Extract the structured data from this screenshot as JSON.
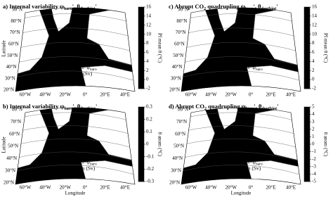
{
  "panels": [
    {
      "label": "a)",
      "title": [
        "Internal variability ψ",
        "baro",
        "', θ",
        "depthint",
        "'"
      ],
      "colorbar_label": "PI mean θ (°C)",
      "clim": [
        -2,
        16
      ],
      "colormap": "jet",
      "colorbar_ticks": [
        16,
        14,
        12,
        10,
        8,
        6,
        4,
        2,
        0,
        -2
      ],
      "lat_labels": [
        "90°N",
        "80°N",
        "70°N",
        "60°N",
        "50°N",
        "40°N",
        "30°N",
        "20°N"
      ],
      "lon_labels": [
        "60°W",
        "40°W",
        "20°W",
        "0°",
        "20°E",
        "40°E"
      ],
      "y_label": "Latitude",
      "annotation": [
        [
          "contours=ψ",
          "baro"
        ],
        [
          "anom (Sv)"
        ]
      ]
    },
    {
      "label": "b)",
      "title": [
        "Internal variability ψ",
        "baro",
        "', θ",
        "depthint",
        "'"
      ],
      "colorbar_label": "θ anom (°C)",
      "clim": [
        -0.3,
        0.3
      ],
      "colormap": "diverging",
      "colorbar_ticks": [
        0.3,
        0.2,
        0.1,
        0,
        -0.1,
        -0.2,
        -0.3
      ],
      "lat_labels": [
        "80°N",
        "70°N",
        "60°N",
        "50°N",
        "40°N",
        "30°N",
        "20°N"
      ],
      "lon_labels": [
        "60°W",
        "40°W",
        "20°W",
        "0°",
        "20°E",
        "40°E"
      ],
      "y_label": "Latitude",
      "x_label": "Longitude",
      "annotation": [
        [
          "contours=ψ",
          "baro"
        ],
        [
          "PI mean (Sv)"
        ]
      ]
    },
    {
      "label": "c)",
      "title": [
        "Abrupt CO",
        "2",
        " quadrupling ψ",
        "baro",
        "', θ",
        "depthint",
        "'"
      ],
      "colorbar_label": "PI mean θ (°C)",
      "clim": [
        -2,
        16
      ],
      "colormap": "jet",
      "colorbar_ticks": [
        16,
        14,
        12,
        10,
        8,
        6,
        4,
        2,
        0,
        -2
      ],
      "lat_labels": [
        "90°N",
        "80°N",
        "70°N",
        "60°N",
        "50°N",
        "40°N",
        "30°N",
        "20°N"
      ],
      "lon_labels": [
        "60°W",
        "40°W",
        "20°W",
        "0°",
        "20°E",
        "40°E"
      ],
      "annotation": [
        [
          "contours=ψ",
          "baro"
        ]
      ]
    },
    {
      "label": "d)",
      "title": [
        "Abrupt CO",
        "2",
        " quadrupling ψ",
        "baro",
        "', θ",
        "depthint",
        "'"
      ],
      "colorbar_label": "θ anom (°C)",
      "clim": [
        -5,
        5
      ],
      "colormap": "diverging",
      "colorbar_ticks": [
        5,
        4,
        3,
        2,
        1,
        0,
        -1,
        -2,
        -3,
        -4,
        -5
      ],
      "lat_labels": [
        "80°N",
        "70°N",
        "60°N",
        "50°N",
        "40°N",
        "30°N",
        "20°N"
      ],
      "lon_labels": [
        "60°W",
        "40°W",
        "20°W",
        "0°",
        "20°E",
        "40°E"
      ],
      "x_label": "Longitude",
      "annotation": [
        [
          "contours=ψ",
          "baro"
        ],
        [
          "PI mean (Sv)"
        ]
      ]
    }
  ]
}
